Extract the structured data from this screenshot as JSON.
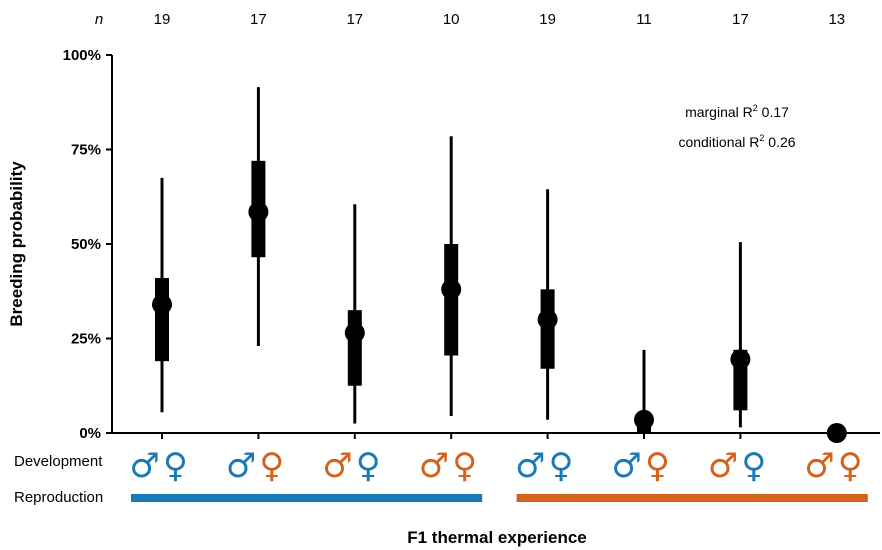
{
  "chart_data": {
    "type": "point-range",
    "ylabel": "Breeding probability",
    "xlabel": "F1 thermal experience",
    "ylim": [
      0,
      100
    ],
    "yticks": [
      0,
      25,
      50,
      75,
      100
    ],
    "ytick_labels": [
      "0%",
      "25%",
      "50%",
      "75%",
      "100%"
    ],
    "n_header": "n",
    "n_values": [
      "19",
      "17",
      "17",
      "10",
      "19",
      "11",
      "17",
      "13"
    ],
    "estimates": [
      34,
      58.5,
      26.5,
      38,
      30,
      3.5,
      19.5,
      0
    ],
    "inner_interval": [
      [
        19,
        41
      ],
      [
        46.5,
        72
      ],
      [
        12.5,
        32.5
      ],
      [
        20.5,
        50
      ],
      [
        17,
        38
      ],
      [
        0,
        4
      ],
      [
        6,
        22
      ],
      [
        0,
        0
      ]
    ],
    "outer_interval": [
      [
        5.5,
        67.5
      ],
      [
        23,
        91.5
      ],
      [
        2.5,
        60.5
      ],
      [
        4.5,
        78.5
      ],
      [
        3.5,
        64.5
      ],
      [
        0,
        22
      ],
      [
        1.5,
        50.5
      ],
      [
        0,
        0
      ]
    ],
    "annotation": {
      "marginal_text": "marginal R",
      "marginal_sup": "2",
      "marginal_value": " 0.17",
      "conditional_text": "conditional R",
      "conditional_sup": "2",
      "conditional_value": " 0.26"
    },
    "rows": {
      "development_label": "Development",
      "reproduction_label": "Reproduction",
      "development": [
        {
          "male": "blue",
          "female": "blue"
        },
        {
          "male": "blue",
          "female": "orange"
        },
        {
          "male": "orange",
          "female": "blue"
        },
        {
          "male": "orange",
          "female": "orange"
        },
        {
          "male": "blue",
          "female": "blue"
        },
        {
          "male": "blue",
          "female": "orange"
        },
        {
          "male": "orange",
          "female": "blue"
        },
        {
          "male": "orange",
          "female": "orange"
        }
      ],
      "reproduction": [
        {
          "from_group": 1,
          "to_group": 4,
          "color": "blue"
        },
        {
          "from_group": 5,
          "to_group": 8,
          "color": "orange"
        }
      ]
    },
    "male_symbol": "♂",
    "female_symbol": "♀",
    "colors": {
      "blue": "#1a7ab5",
      "orange": "#d2621c",
      "marks": "#000000"
    },
    "grid": false,
    "legend": "none"
  }
}
